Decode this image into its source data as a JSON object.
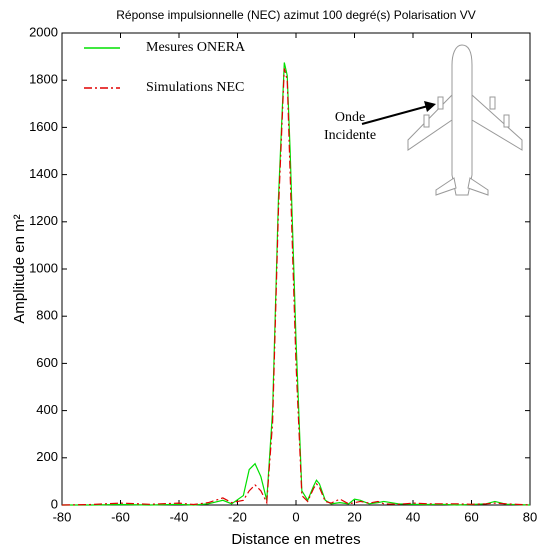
{
  "chart_data": {
    "type": "line",
    "title": "Réponse impulsionnelle (NEC) azimut 100 degré(s) Polarisation VV",
    "xlabel": "Distance en metres",
    "ylabel": "Amplitude en m²",
    "annotation_lines": [
      "Onde",
      "Incidente"
    ],
    "x": [
      -80,
      -70,
      -60,
      -50,
      -40,
      -35,
      -30,
      -25,
      -22,
      -18,
      -16,
      -14,
      -12,
      -10,
      -8,
      -6,
      -4,
      -3,
      -2,
      0,
      2,
      4,
      6,
      7,
      8,
      10,
      12,
      15,
      18,
      20,
      22,
      25,
      28,
      30,
      35,
      40,
      45,
      50,
      55,
      60,
      65,
      68,
      72,
      80
    ],
    "series": [
      {
        "name": "Mesures ONERA",
        "color": "#00e000",
        "style": "solid",
        "values": [
          0,
          0,
          2,
          0,
          3,
          0,
          5,
          20,
          5,
          40,
          150,
          175,
          120,
          20,
          400,
          1300,
          1875,
          1820,
          1500,
          700,
          60,
          20,
          80,
          105,
          90,
          20,
          5,
          10,
          5,
          25,
          20,
          5,
          10,
          15,
          5,
          3,
          2,
          3,
          0,
          2,
          5,
          15,
          3,
          0
        ]
      },
      {
        "name": "Simulations NEC",
        "color": "#e00000",
        "style": "dashdot",
        "values": [
          0,
          2,
          8,
          3,
          8,
          2,
          10,
          30,
          10,
          20,
          60,
          85,
          60,
          10,
          350,
          1250,
          1850,
          1800,
          1400,
          600,
          40,
          15,
          70,
          90,
          75,
          15,
          8,
          25,
          5,
          10,
          15,
          8,
          15,
          5,
          3,
          8,
          5,
          5,
          5,
          3,
          5,
          8,
          5,
          0
        ]
      }
    ],
    "xlim": [
      -80,
      80
    ],
    "xticks": [
      -80,
      -60,
      -40,
      -20,
      0,
      20,
      40,
      60,
      80
    ],
    "ylim": [
      0,
      2000
    ],
    "yticks": [
      0,
      200,
      400,
      600,
      800,
      1000,
      1200,
      1400,
      1600,
      1800,
      2000
    ],
    "grid": false,
    "legend": "upper left"
  }
}
